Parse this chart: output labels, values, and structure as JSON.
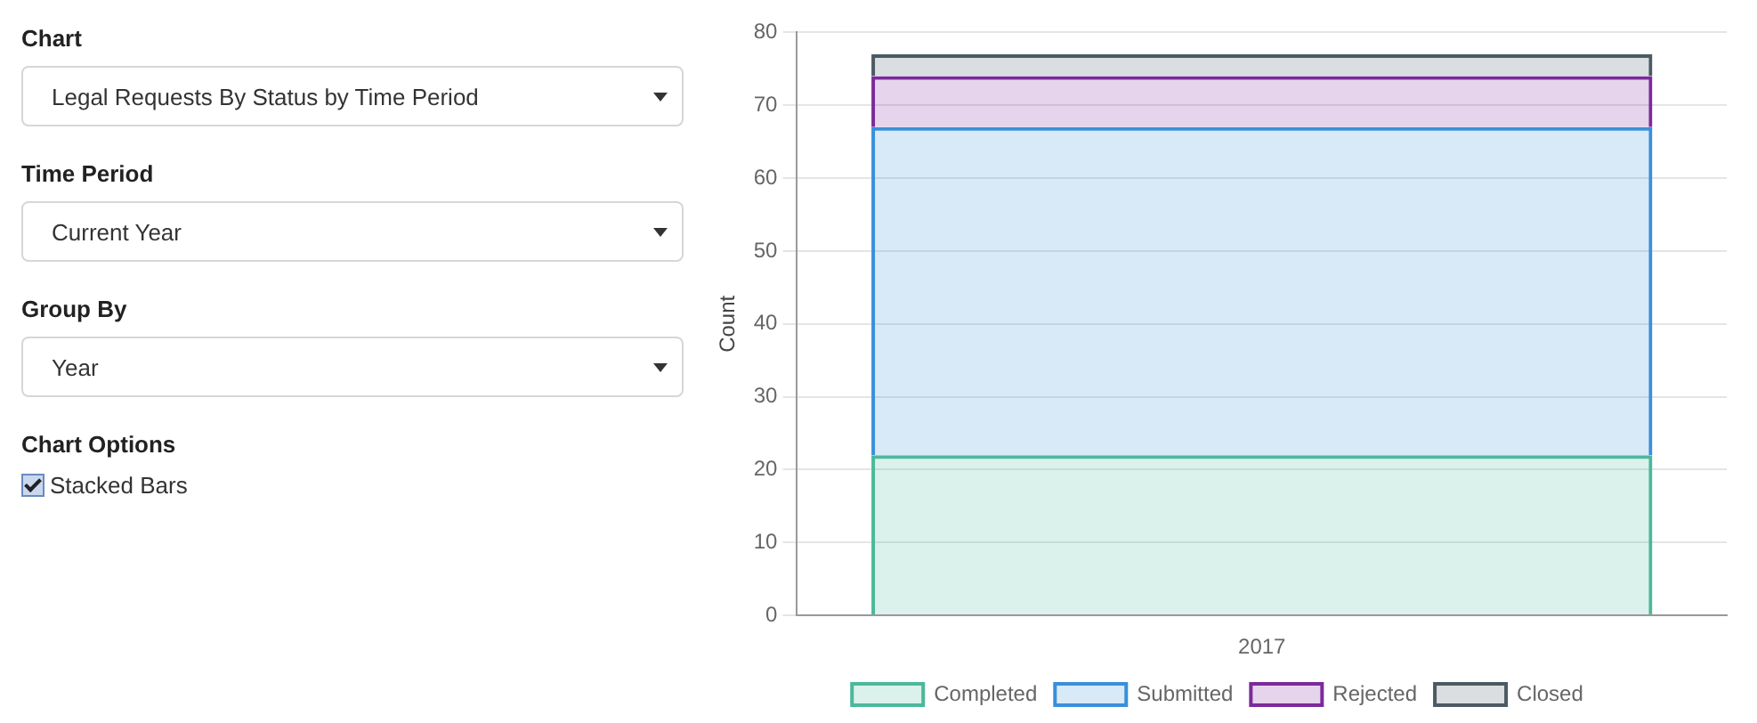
{
  "chart_data": [
    {
      "type": "other",
      "annotations": [
        "Chart",
        "Legal Requests By Status by Time Period",
        "Time Period",
        "Current Year",
        "Group By",
        "Year",
        "Chart Options",
        "Stacked Bars"
      ]
    },
    {
      "type": "bar",
      "ylabel": "Count",
      "categories": [
        "2017"
      ],
      "stacked": true,
      "ylim": [
        0,
        80
      ],
      "yticks": [
        0,
        10,
        20,
        30,
        40,
        50,
        60,
        70,
        80
      ],
      "grid": "y",
      "legend": "bottom",
      "series": [
        {
          "name": "Completed",
          "color": "#4bb89a",
          "values": [
            22
          ]
        },
        {
          "name": "Submitted",
          "color": "#3a8fd9",
          "values": [
            45
          ]
        },
        {
          "name": "Rejected",
          "color": "#7b2a9c",
          "values": [
            7
          ]
        },
        {
          "name": "Closed",
          "color": "#4b5a63",
          "values": [
            3
          ]
        }
      ]
    }
  ]
}
